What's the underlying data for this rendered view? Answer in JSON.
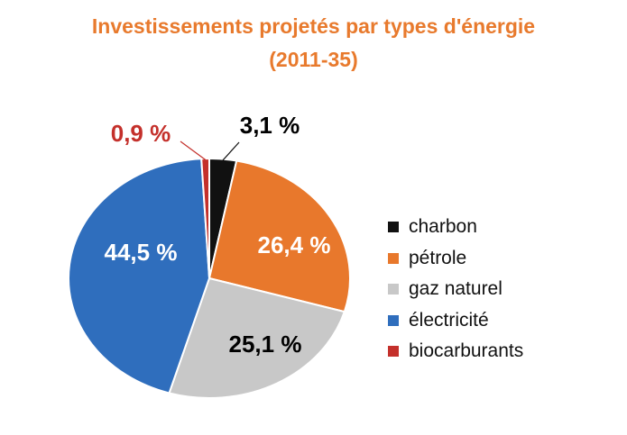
{
  "chart_data": {
    "type": "pie",
    "title": "Investissements projetés par types d'énergie",
    "subtitle": "(2011-35)",
    "slices": [
      {
        "name": "charbon",
        "value": 3.1,
        "label": "3,1 %",
        "color": "#111111",
        "label_color": "#000000"
      },
      {
        "name": "pétrole",
        "value": 26.4,
        "label": "26,4 %",
        "color": "#e8782c",
        "label_color": "#ffffff"
      },
      {
        "name": "gaz naturel",
        "value": 25.1,
        "label": "25,1 %",
        "color": "#c8c8c8",
        "label_color": "#000000"
      },
      {
        "name": "électricité",
        "value": 44.5,
        "label": "44,5 %",
        "color": "#2f6ebd",
        "label_color": "#ffffff"
      },
      {
        "name": "biocarburants",
        "value": 0.9,
        "label": "0,9 %",
        "color": "#c4302b",
        "label_color": "#c4302b"
      }
    ],
    "legend_position": "right"
  }
}
